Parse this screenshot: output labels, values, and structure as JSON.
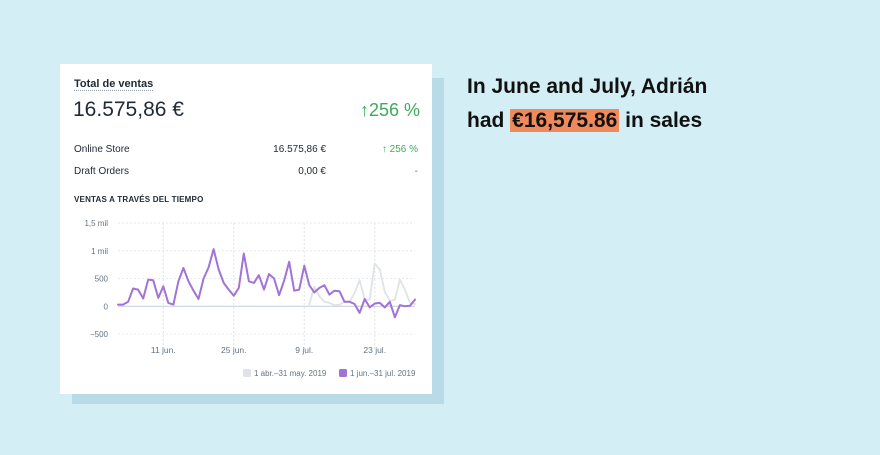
{
  "card": {
    "title": "Total de ventas",
    "total": "16.575,86 €",
    "total_change": "↑256 %",
    "rows": [
      {
        "label": "Online Store",
        "value": "16.575,86 €",
        "change": "↑ 256 %"
      },
      {
        "label": "Draft Orders",
        "value": "0,00 €",
        "change": "-"
      }
    ],
    "section_title": "VENTAS A TRAVÉS DEL TIEMPO"
  },
  "headline": {
    "line1": "In June and July, Adrián",
    "line2_prefix": "had ",
    "line2_highlight": "€16,575.86",
    "line2_suffix": " in sales"
  },
  "colors": {
    "current": "#a173d6",
    "previous": "#dfe3e8",
    "highlight": "#f08a5d",
    "positive": "#3dab5b"
  },
  "chart_data": {
    "type": "line",
    "ylim": [
      -500,
      1500
    ],
    "y_ticks": [
      -500,
      0,
      500,
      1000,
      1500
    ],
    "y_tick_labels": [
      "−500",
      "0",
      "500",
      "1 mil",
      "1,5 mil"
    ],
    "x_tick_labels": [
      "11 jun.",
      "25 jun.",
      "9 jul.",
      "23 jul."
    ],
    "x_tick_index": [
      9,
      23,
      37,
      51
    ],
    "legend": [
      "1 abr.–31 may. 2019",
      "1 jun.–31 jul. 2019"
    ],
    "series": [
      {
        "name": "1 jun.–31 jul. 2019",
        "values": [
          30,
          30,
          80,
          320,
          300,
          140,
          480,
          470,
          150,
          360,
          60,
          30,
          450,
          690,
          450,
          280,
          130,
          500,
          700,
          1030,
          660,
          420,
          300,
          190,
          330,
          950,
          450,
          420,
          560,
          300,
          580,
          500,
          200,
          460,
          800,
          280,
          300,
          730,
          380,
          250,
          330,
          380,
          210,
          280,
          270,
          80,
          80,
          40,
          -120,
          130,
          -20,
          50,
          60,
          -20,
          80,
          -200,
          20,
          0,
          10,
          120
        ]
      },
      {
        "name": "1 abr.–31 may. 2019",
        "values": [
          null,
          null,
          null,
          null,
          null,
          null,
          null,
          null,
          null,
          null,
          null,
          null,
          null,
          null,
          null,
          null,
          null,
          null,
          null,
          null,
          null,
          null,
          null,
          null,
          null,
          null,
          null,
          null,
          null,
          null,
          null,
          null,
          null,
          null,
          null,
          null,
          null,
          null,
          30,
          350,
          180,
          80,
          60,
          20,
          30,
          80,
          80,
          240,
          470,
          120,
          120,
          770,
          660,
          260,
          100,
          120,
          480,
          300,
          60,
          40
        ]
      }
    ]
  }
}
